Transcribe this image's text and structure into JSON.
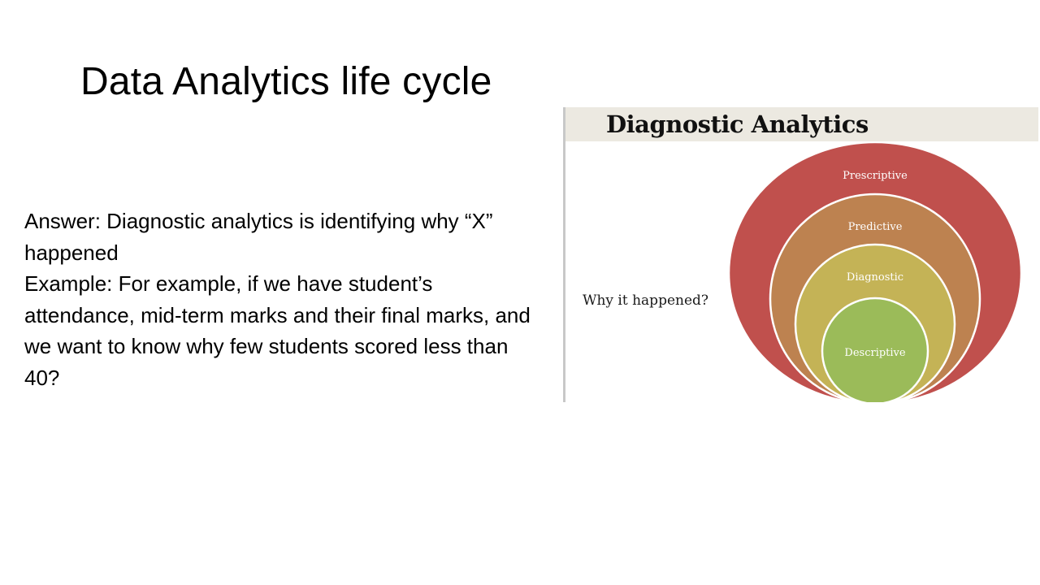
{
  "slide": {
    "title": "Data Analytics life cycle",
    "answer_line": "Answer: Diagnostic analytics is identifying why “X” happened",
    "example_line": "Example: For example, if we have student’s attendance, mid-term marks and their final marks, and we want to know why few students scored less than 40?"
  },
  "figure": {
    "heading": "Diagnostic Analytics",
    "question": "Why it happened?",
    "layers": [
      {
        "label": "Prescriptive",
        "color": "#c0504d"
      },
      {
        "label": "Predictive",
        "color": "#bd8250"
      },
      {
        "label": "Diagnostic",
        "color": "#c4b356"
      },
      {
        "label": "Descriptive",
        "color": "#9bbb59"
      }
    ],
    "ring_stroke_color": "#ffffff"
  }
}
